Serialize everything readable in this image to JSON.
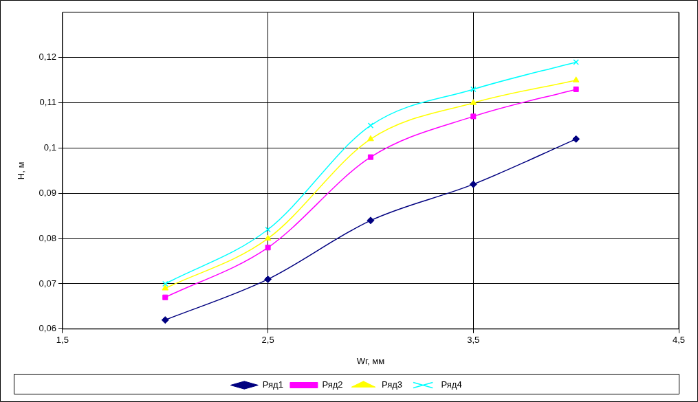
{
  "chart_data": {
    "type": "line",
    "xlabel": "Wг, мм",
    "ylabel": "H, м",
    "x": [
      2,
      2.5,
      3,
      3.5,
      4
    ],
    "xlim": [
      1.5,
      4.5
    ],
    "xticks": [
      {
        "value": 1.5,
        "label": "1,5"
      },
      {
        "value": 2.5,
        "label": "2,5"
      },
      {
        "value": 3.5,
        "label": "3,5"
      },
      {
        "value": 4.5,
        "label": "4,5"
      }
    ],
    "ylim": [
      0.06,
      0.13
    ],
    "yticks": [
      {
        "value": 0.06,
        "label": "0,06"
      },
      {
        "value": 0.07,
        "label": "0,07"
      },
      {
        "value": 0.08,
        "label": "0,08"
      },
      {
        "value": 0.09,
        "label": "0,09"
      },
      {
        "value": 0.1,
        "label": "0,1"
      },
      {
        "value": 0.11,
        "label": "0,11"
      },
      {
        "value": 0.12,
        "label": "0,12"
      }
    ],
    "grid": true,
    "legend": "bottom",
    "line_style": "solid",
    "series": [
      {
        "name": "Ряд1",
        "color": "#000080",
        "marker": "diamond",
        "values": [
          0.062,
          0.071,
          0.084,
          0.092,
          0.102
        ]
      },
      {
        "name": "Ряд2",
        "color": "#ff00ff",
        "marker": "square",
        "values": [
          0.067,
          0.078,
          0.098,
          0.107,
          0.113
        ]
      },
      {
        "name": "Ряд3",
        "color": "#ffff00",
        "marker": "triangle",
        "values": [
          0.069,
          0.08,
          0.102,
          0.11,
          0.115
        ]
      },
      {
        "name": "Ряд4",
        "color": "#00ffff",
        "marker": "cross",
        "values": [
          0.07,
          0.082,
          0.105,
          0.113,
          0.119
        ]
      }
    ]
  }
}
